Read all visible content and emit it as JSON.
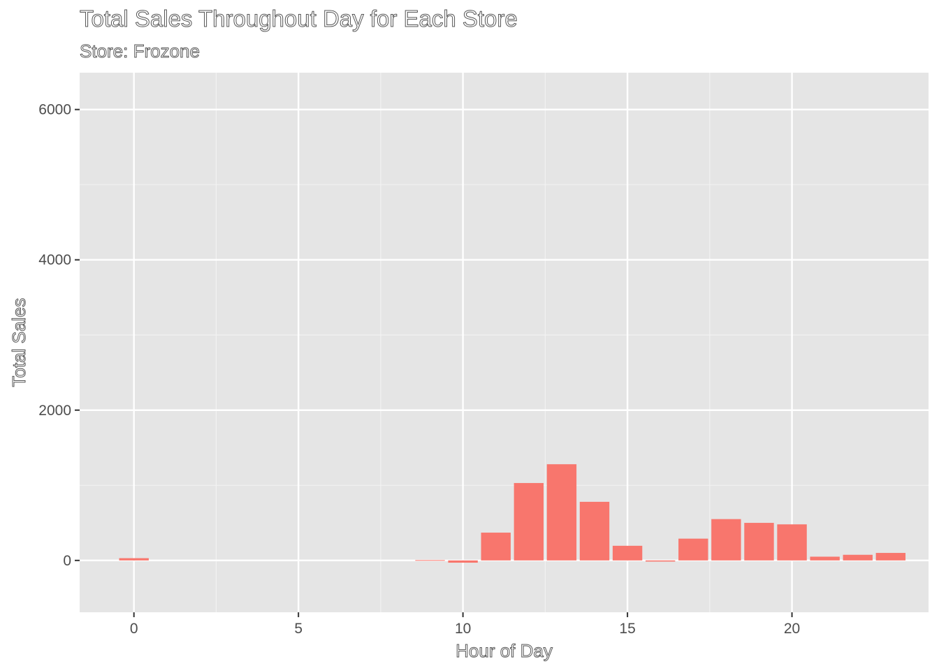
{
  "chart_data": {
    "type": "bar",
    "title": "Total Sales Throughout Day for Each Store",
    "subtitle": "Store: Frozone",
    "xlabel": "Hour of Day",
    "ylabel": "Total Sales",
    "x": [
      0,
      9,
      10,
      11,
      12,
      13,
      14,
      15,
      16,
      17,
      18,
      19,
      20,
      21,
      22,
      23
    ],
    "values": [
      30,
      5,
      -30,
      370,
      1030,
      1280,
      780,
      195,
      -15,
      290,
      550,
      500,
      480,
      50,
      75,
      100
    ],
    "xlim": [
      -1.65,
      24.15
    ],
    "ylim": [
      -690,
      6490
    ],
    "x_ticks": [
      0,
      5,
      10,
      15,
      20
    ],
    "y_ticks": [
      0,
      2000,
      4000,
      6000
    ],
    "bar_color": "#F8766D",
    "panel_background": "#E5E5E5",
    "grid": true
  }
}
